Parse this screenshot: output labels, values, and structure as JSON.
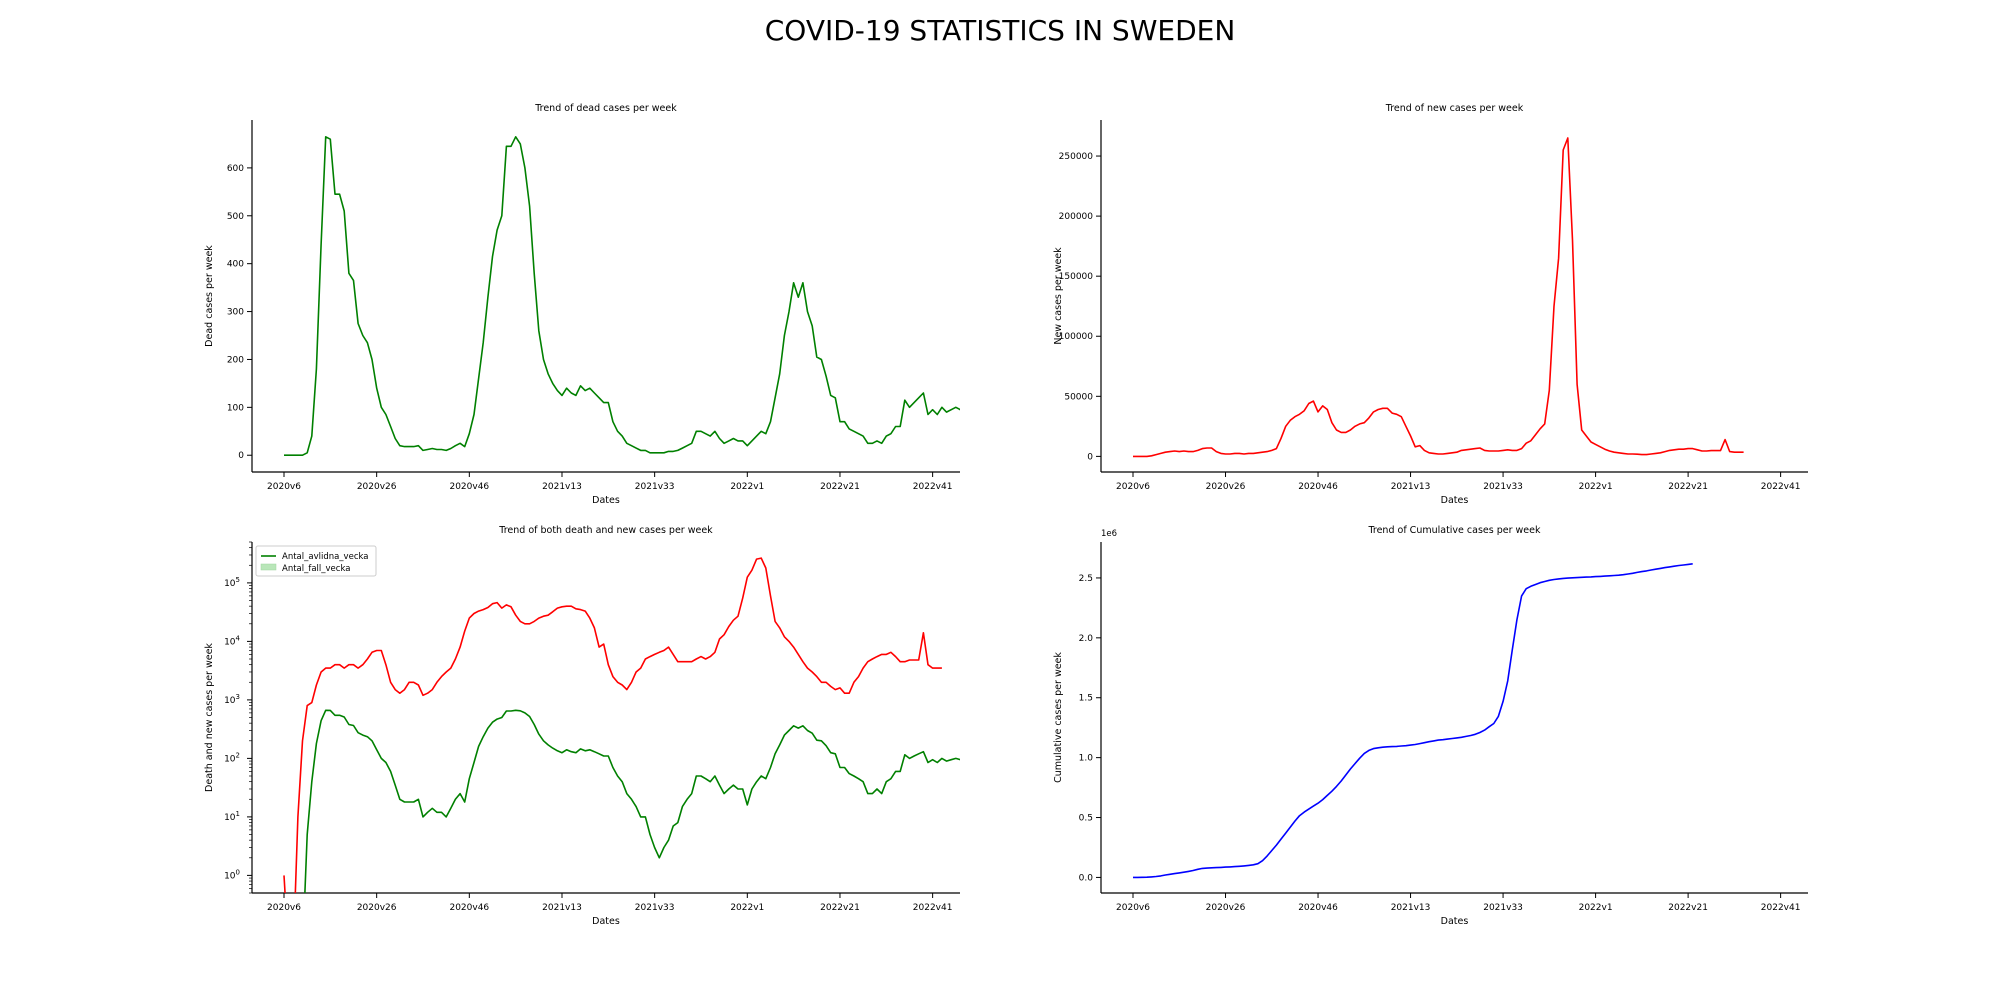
{
  "suptitle": "COVID-19 STATISTICS IN SWEDEN",
  "x_tick_labels": [
    "2020v6",
    "2020v26",
    "2020v46",
    "2021v13",
    "2021v33",
    "2022v1",
    "2022v21",
    "2022v41"
  ],
  "chart_data": [
    {
      "type": "line",
      "title": "Trend of dead cases per week",
      "xlabel": "Dates",
      "ylabel": "Dead cases per week",
      "x_range": [
        0,
        139
      ],
      "ylim": [
        -35,
        700
      ],
      "y_ticks": [
        0,
        100,
        200,
        300,
        400,
        500,
        600
      ],
      "grid": false,
      "series": [
        {
          "color": "#008000",
          "values": [
            0,
            0,
            0,
            0,
            0,
            5,
            40,
            180,
            440,
            665,
            660,
            545,
            545,
            510,
            380,
            365,
            275,
            250,
            235,
            200,
            140,
            100,
            85,
            60,
            35,
            20,
            18,
            18,
            18,
            20,
            10,
            12,
            14,
            12,
            12,
            10,
            14,
            20,
            25,
            18,
            45,
            85,
            160,
            235,
            330,
            415,
            470,
            500,
            645,
            645,
            665,
            650,
            600,
            520,
            380,
            260,
            200,
            170,
            150,
            135,
            125,
            140,
            130,
            125,
            145,
            135,
            140,
            130,
            120,
            110,
            110,
            70,
            50,
            40,
            25,
            20,
            15,
            10,
            10,
            5,
            5,
            5,
            5,
            8,
            8,
            10,
            15,
            20,
            25,
            50,
            50,
            45,
            40,
            50,
            35,
            25,
            30,
            35,
            30,
            30,
            20,
            30,
            40,
            50,
            45,
            70,
            120,
            170,
            250,
            300,
            360,
            330,
            360,
            300,
            270,
            205,
            200,
            165,
            125,
            120,
            70,
            70,
            55,
            50,
            45,
            40,
            25,
            25,
            30,
            25,
            40,
            45,
            60,
            60,
            115,
            100,
            110,
            120,
            130,
            85,
            95,
            85,
            100,
            90,
            95,
            100,
            95,
            70,
            35
          ]
        }
      ]
    },
    {
      "type": "line",
      "title": "Trend of new cases per week",
      "xlabel": "Dates",
      "ylabel": "New cases per week",
      "x_range": [
        0,
        139
      ],
      "ylim": [
        -13000,
        280000
      ],
      "y_ticks": [
        0,
        50000,
        100000,
        150000,
        200000,
        250000
      ],
      "grid": false,
      "series": [
        {
          "color": "#ff0000",
          "values": [
            0,
            0,
            0,
            0,
            500,
            1500,
            2500,
            3500,
            4000,
            4500,
            4000,
            4500,
            4000,
            4000,
            5000,
            6500,
            7000,
            7000,
            4000,
            2500,
            2000,
            2000,
            2500,
            2500,
            2000,
            2500,
            2500,
            3000,
            3500,
            4000,
            5000,
            6500,
            15000,
            25000,
            30000,
            33000,
            35000,
            38000,
            44000,
            46000,
            37000,
            42000,
            39000,
            28000,
            22000,
            20000,
            20000,
            22000,
            25000,
            27000,
            28000,
            32000,
            37000,
            39000,
            40000,
            40000,
            36000,
            35000,
            33000,
            25000,
            17000,
            8000,
            9000,
            5000,
            3000,
            2500,
            2000,
            2000,
            2500,
            3000,
            3500,
            5000,
            5500,
            6000,
            6500,
            7000,
            5000,
            4500,
            4500,
            4500,
            5000,
            5500,
            5000,
            5000,
            6500,
            11000,
            13000,
            18000,
            23000,
            27000,
            55000,
            125000,
            165000,
            255000,
            265000,
            180000,
            60000,
            22000,
            17000,
            12000,
            10000,
            8000,
            6000,
            4500,
            3500,
            3000,
            2500,
            2000,
            2000,
            1800,
            1500,
            1500,
            2000,
            2500,
            3000,
            4000,
            5000,
            5500,
            6000,
            6000,
            6500,
            6500,
            5500,
            4500,
            4500,
            4800,
            4800,
            4800,
            14000,
            4000,
            3500,
            3500,
            3500
          ]
        }
      ]
    },
    {
      "type": "line",
      "title": "Trend of both death and new cases per week",
      "xlabel": "Dates",
      "ylabel": "Death and new cases per week",
      "yscale": "log",
      "x_range": [
        0,
        139
      ],
      "ylim": [
        0.5,
        500000
      ],
      "y_tick_exponents": [
        0,
        1,
        2,
        3,
        4,
        5
      ],
      "legend": "top-left",
      "legend_entries": [
        "Antal_avlidna_vecka",
        "Antal_fall_vecka"
      ],
      "grid": false,
      "series": [
        {
          "name": "Antal_avlidna_vecka",
          "color": "#008000",
          "values": [
            0,
            0,
            0,
            0,
            0,
            5,
            40,
            180,
            440,
            665,
            660,
            545,
            545,
            510,
            380,
            365,
            275,
            250,
            235,
            200,
            140,
            100,
            85,
            60,
            35,
            20,
            18,
            18,
            18,
            20,
            10,
            12,
            14,
            12,
            12,
            10,
            14,
            20,
            25,
            18,
            45,
            85,
            160,
            235,
            330,
            415,
            470,
            500,
            645,
            645,
            665,
            650,
            600,
            520,
            380,
            260,
            200,
            170,
            150,
            135,
            125,
            140,
            130,
            125,
            145,
            135,
            140,
            130,
            120,
            110,
            110,
            70,
            50,
            40,
            25,
            20,
            15,
            10,
            10,
            5,
            3,
            2,
            3,
            4,
            7,
            8,
            15,
            20,
            25,
            50,
            50,
            45,
            40,
            50,
            35,
            25,
            30,
            35,
            30,
            30,
            16,
            30,
            40,
            50,
            45,
            70,
            120,
            170,
            250,
            300,
            360,
            330,
            360,
            300,
            270,
            205,
            200,
            165,
            125,
            120,
            70,
            70,
            55,
            50,
            45,
            40,
            25,
            25,
            30,
            25,
            40,
            45,
            60,
            60,
            115,
            100,
            110,
            120,
            130,
            85,
            95,
            85,
            100,
            90,
            95,
            100,
            95,
            70,
            35
          ]
        },
        {
          "name": "Antal_fall_vecka",
          "color": "#ff0000",
          "values": [
            1,
            0,
            0,
            10,
            200,
            800,
            900,
            1800,
            3000,
            3500,
            3500,
            4000,
            4000,
            3500,
            4000,
            4000,
            3500,
            4000,
            5000,
            6500,
            7000,
            7000,
            4000,
            2000,
            1500,
            1300,
            1500,
            2000,
            2000,
            1800,
            1200,
            1300,
            1500,
            2000,
            2500,
            3000,
            3500,
            5000,
            8000,
            15000,
            25000,
            30000,
            33000,
            35000,
            38000,
            44000,
            46000,
            37000,
            42000,
            39000,
            28000,
            22000,
            20000,
            20000,
            22000,
            25000,
            27000,
            28000,
            32000,
            37000,
            39000,
            40000,
            40000,
            36000,
            35000,
            33000,
            25000,
            17000,
            8000,
            9000,
            4000,
            2500,
            2000,
            1800,
            1500,
            2000,
            3000,
            3500,
            5000,
            5500,
            6000,
            6500,
            7000,
            8000,
            6000,
            4500,
            4500,
            4500,
            4500,
            5000,
            5500,
            5000,
            5500,
            6500,
            11000,
            13000,
            18000,
            23000,
            27000,
            55000,
            125000,
            165000,
            255000,
            265000,
            180000,
            60000,
            22000,
            17000,
            12000,
            10000,
            8000,
            6000,
            4500,
            3500,
            3000,
            2500,
            2000,
            2000,
            1700,
            1500,
            1600,
            1300,
            1300,
            2000,
            2500,
            3500,
            4500,
            5000,
            5500,
            6000,
            6000,
            6500,
            5500,
            4500,
            4500,
            4800,
            4800,
            4800,
            14000,
            4000,
            3500,
            3500,
            3500
          ]
        }
      ]
    },
    {
      "type": "line",
      "title": "Trend of Cumulative cases per week",
      "xlabel": "Dates",
      "ylabel": "Cumulative cases per week",
      "y_offset_label": "1e6",
      "x_range": [
        0,
        139
      ],
      "ylim": [
        -0.13,
        2.8
      ],
      "y_ticks": [
        0.0,
        0.5,
        1.0,
        1.5,
        2.0,
        2.5
      ],
      "y_tick_labels": [
        "0.0",
        "0.5",
        "1.0",
        "1.5",
        "2.0",
        "2.5"
      ],
      "grid": false,
      "series": [
        {
          "color": "#0000ff",
          "values": [
            0.0,
            0.0,
            0.001,
            0.002,
            0.004,
            0.008,
            0.013,
            0.02,
            0.026,
            0.032,
            0.038,
            0.044,
            0.05,
            0.058,
            0.068,
            0.075,
            0.078,
            0.08,
            0.082,
            0.084,
            0.086,
            0.088,
            0.09,
            0.093,
            0.096,
            0.1,
            0.105,
            0.115,
            0.14,
            0.18,
            0.225,
            0.27,
            0.32,
            0.37,
            0.42,
            0.47,
            0.515,
            0.545,
            0.57,
            0.595,
            0.62,
            0.65,
            0.685,
            0.72,
            0.76,
            0.805,
            0.855,
            0.905,
            0.95,
            0.995,
            1.035,
            1.06,
            1.075,
            1.082,
            1.087,
            1.09,
            1.092,
            1.094,
            1.097,
            1.1,
            1.105,
            1.11,
            1.117,
            1.125,
            1.133,
            1.14,
            1.146,
            1.15,
            1.155,
            1.16,
            1.165,
            1.17,
            1.177,
            1.185,
            1.195,
            1.21,
            1.23,
            1.258,
            1.285,
            1.345,
            1.47,
            1.64,
            1.9,
            2.15,
            2.35,
            2.41,
            2.43,
            2.445,
            2.46,
            2.47,
            2.48,
            2.487,
            2.492,
            2.496,
            2.499,
            2.501,
            2.503,
            2.505,
            2.507,
            2.509,
            2.511,
            2.513,
            2.515,
            2.518,
            2.52,
            2.523,
            2.527,
            2.533,
            2.539,
            2.546,
            2.553,
            2.559,
            2.566,
            2.573,
            2.58,
            2.586,
            2.592,
            2.598,
            2.604,
            2.608,
            2.613,
            2.618
          ]
        }
      ]
    }
  ]
}
